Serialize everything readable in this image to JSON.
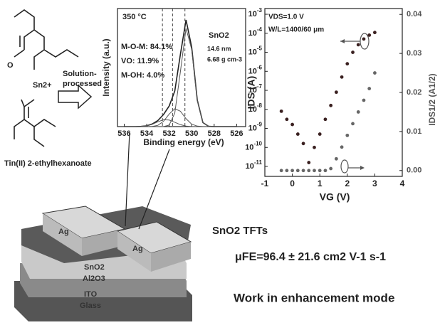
{
  "molecule": {
    "cation": "Sn2+",
    "name": "Tin(II) 2-ethylhexanoate",
    "process": [
      "Solution-",
      "processed"
    ]
  },
  "chart_data": [
    {
      "type": "line",
      "xlabel": "Binding energy (eV)",
      "ylabel": "Intensity (a.u.)",
      "annotations": [
        "350 °C",
        "M-O-M: 84.1%",
        "VO: 11.9%",
        "M-OH: 4.0%",
        "SnO2",
        "14.6 nm",
        "6.68 g cm-3"
      ],
      "xlim": [
        536.6,
        525.2
      ],
      "xticks": [
        536,
        534,
        532,
        530,
        528,
        526
      ],
      "ylim": [
        0,
        1.15
      ],
      "reference_lines": [
        532.6,
        531.7,
        530.6
      ],
      "x": [
        536,
        535.5,
        535,
        534.5,
        534,
        533.5,
        533,
        532.5,
        532,
        531.5,
        531,
        530.5,
        530,
        529.5,
        529,
        528.5,
        528,
        527.5,
        527,
        526.5,
        526
      ],
      "series": [
        {
          "color": "#222222",
          "values": [
            0,
            0,
            0,
            0.002,
            0.008,
            0.026,
            0.061,
            0.121,
            0.205,
            0.356,
            0.722,
            1.065,
            0.794,
            0.265,
            0.04,
            0.003,
            0,
            0,
            0,
            0,
            0
          ]
        },
        {
          "color": "#555555",
          "values": [
            0,
            0,
            0,
            0,
            0,
            0,
            0,
            0,
            0.015,
            0.135,
            0.55,
            0.98,
            0.77,
            0.26,
            0.04,
            0.003,
            0,
            0,
            0,
            0,
            0
          ]
        },
        {
          "color": "#555555",
          "values": [
            0,
            0,
            0,
            0,
            0,
            0.002,
            0.013,
            0.053,
            0.125,
            0.178,
            0.153,
            0.079,
            0.024,
            0.005,
            0,
            0,
            0,
            0,
            0,
            0,
            0
          ]
        },
        {
          "color": "#555555",
          "values": [
            0,
            0,
            0,
            0.002,
            0.007,
            0.023,
            0.048,
            0.068,
            0.065,
            0.043,
            0.019,
            0.006,
            0,
            0,
            0,
            0,
            0,
            0,
            0,
            0,
            0
          ]
        }
      ]
    },
    {
      "type": "scatter",
      "xlabel": "VG (V)",
      "ylabel": "IDS (A)",
      "y2label": "IDS1/2 (A1/2)",
      "annotations": [
        "VDS=1.0 V",
        "W/L=1400/60 μm"
      ],
      "log_y": true,
      "xlim": [
        -1,
        4
      ],
      "xticks": [
        -1,
        0,
        1,
        2,
        3,
        4
      ],
      "ylim": [
        3e-12,
        0.002
      ],
      "yticks": [
        {
          "value": 0.001,
          "label": "10-3"
        },
        {
          "value": 0.0001,
          "label": "10-4"
        },
        {
          "value": 1e-05,
          "label": "10-5"
        },
        {
          "value": 1e-06,
          "label": "10-6"
        },
        {
          "value": 1e-07,
          "label": "10-7"
        },
        {
          "value": 1e-08,
          "label": "10-8"
        },
        {
          "value": 1e-09,
          "label": "10-9"
        },
        {
          "value": 1e-10,
          "label": "10-10"
        },
        {
          "value": 1e-11,
          "label": "10-11"
        }
      ],
      "y2lim": [
        -0.0015,
        0.0415
      ],
      "y2ticks": [
        {
          "value": 0,
          "label": "0.00"
        },
        0.01,
        0.02,
        0.03,
        0.04
      ],
      "x": [
        -0.4,
        -0.2,
        0,
        0.2,
        0.4,
        0.6,
        0.8,
        1.0,
        1.2,
        1.4,
        1.6,
        1.8,
        2.0,
        2.2,
        2.4,
        2.6,
        2.8,
        3.0
      ],
      "series": [
        {
          "color": "#3a2020",
          "values": [
            8e-09,
            3e-09,
            1.6e-09,
            5e-10,
            1.6e-10,
            1.6e-11,
            1e-10,
            5e-10,
            3e-09,
            1.6e-08,
            8e-08,
            5e-07,
            2.5e-06,
            1e-05,
            2.5e-05,
            5e-05,
            8e-05,
            0.00011
          ]
        },
        {
          "color": "#666666",
          "axis": "y2",
          "values": [
            0,
            0,
            0,
            0,
            0,
            0,
            0,
            0,
            0,
            0.0005,
            0.003,
            0.006,
            0.009,
            0.012,
            0.015,
            0.018,
            0.021,
            0.025
          ]
        }
      ]
    }
  ],
  "device": {
    "layers": [
      "Ag",
      "Ag",
      "SnO2",
      "Al2O3",
      "ITO",
      "Glass"
    ]
  },
  "highlights": [
    "SnO2 TFTs",
    "μFE=96.4 ± 21.6 cm2 V-1 s-1",
    "Work in enhancement mode"
  ]
}
